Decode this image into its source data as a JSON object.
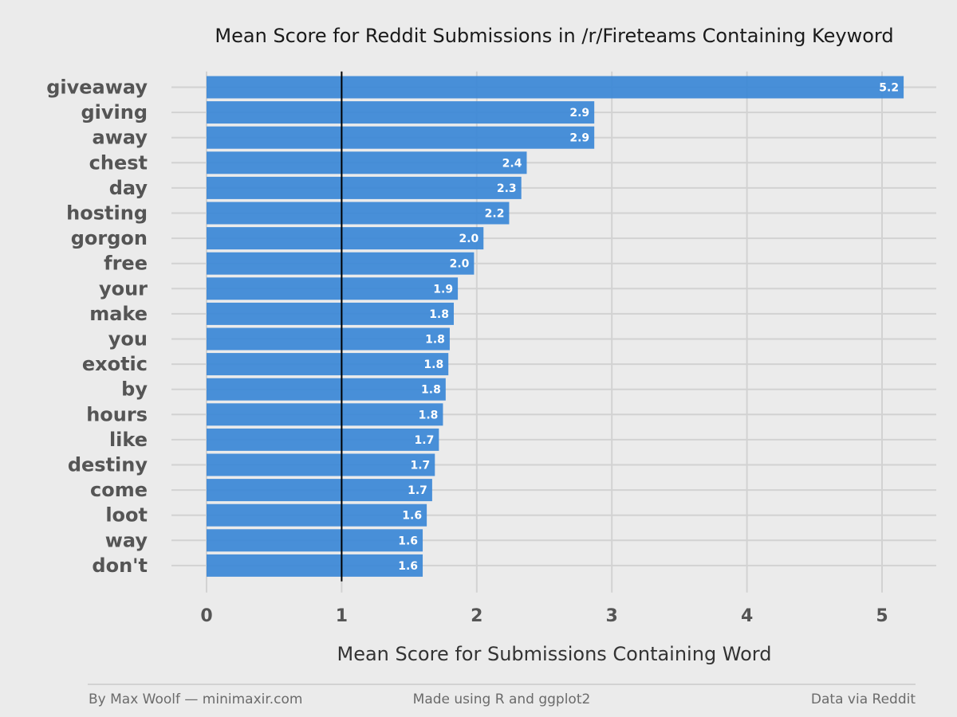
{
  "chart_data": {
    "type": "bar",
    "orientation": "horizontal",
    "title": "Mean Score for Reddit Submissions in /r/Fireteams Containing Keyword",
    "xlabel": "Mean Score for Submissions Containing Word",
    "ylabel": "",
    "categories": [
      "giveaway",
      "giving",
      "away",
      "chest",
      "day",
      "hosting",
      "gorgon",
      "free",
      "your",
      "make",
      "you",
      "exotic",
      "by",
      "hours",
      "like",
      "destiny",
      "come",
      "loot",
      "way",
      "don't"
    ],
    "values": [
      5.16,
      2.87,
      2.87,
      2.37,
      2.33,
      2.24,
      2.05,
      1.98,
      1.86,
      1.83,
      1.8,
      1.79,
      1.77,
      1.75,
      1.72,
      1.69,
      1.67,
      1.63,
      1.6,
      1.6
    ],
    "value_labels": [
      "5.2",
      "2.9",
      "2.9",
      "2.4",
      "2.3",
      "2.2",
      "2.0",
      "2.0",
      "1.9",
      "1.8",
      "1.8",
      "1.8",
      "1.8",
      "1.8",
      "1.7",
      "1.7",
      "1.7",
      "1.6",
      "1.6",
      "1.6"
    ],
    "xlim": [
      0,
      5.4
    ],
    "x_ticks": [
      "0",
      "1",
      "2",
      "3",
      "4",
      "5"
    ],
    "reference_line": 1,
    "grid": true,
    "bar_color": "#3a87d6",
    "reference_line_color": "#000000",
    "background_color": "#ebebeb"
  },
  "footer": {
    "left": "By Max Woolf — minimaxir.com",
    "center": "Made using R and ggplot2",
    "right": "Data via Reddit"
  }
}
